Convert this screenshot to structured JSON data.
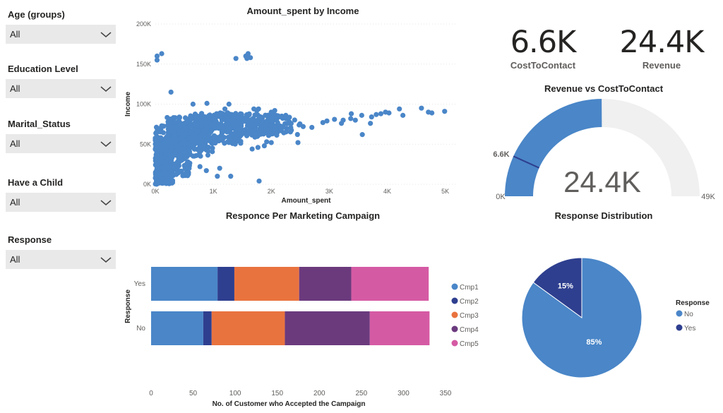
{
  "slicers": [
    {
      "title": "Age (groups)",
      "value": "All"
    },
    {
      "title": "Education Level",
      "value": "All"
    },
    {
      "title": "Marital_Status",
      "value": "All"
    },
    {
      "title": "Have a Child",
      "value": "All"
    },
    {
      "title": "Response",
      "value": "All"
    }
  ],
  "kpis": {
    "cost": {
      "value": "6.6K",
      "label": "CostToContact"
    },
    "revenue": {
      "value": "24.4K",
      "label": "Revenue"
    }
  },
  "colors": {
    "primary": "#4a86c8",
    "navy": "#2e3f8f",
    "orange": "#e9733f",
    "purple": "#6b3a7d",
    "pink": "#d55aa4",
    "gauge_bg": "#f0f0f0"
  },
  "gauge": {
    "title": "Revenue vs CostToContact",
    "value": 24.4,
    "target": 6.6,
    "min": 0,
    "max": 49,
    "value_label": "24.4K",
    "target_label": "6.6K",
    "min_label": "0K",
    "max_label": "49K"
  },
  "chart_data": [
    {
      "type": "scatter",
      "title": "Amount_spent by Income",
      "xlabel": "Amount_spent",
      "ylabel": "Income",
      "xlim": [
        0,
        5200
      ],
      "ylim": [
        0,
        200000
      ],
      "x_ticks": [
        "0K",
        "1K",
        "2K",
        "3K",
        "4K",
        "5K"
      ],
      "y_ticks": [
        "0K",
        "50K",
        "100K",
        "150K",
        "200K"
      ],
      "points": [
        {
          "x": 30,
          "y": 160000
        },
        {
          "x": 110,
          "y": 163000
        },
        {
          "x": 30,
          "y": 155000
        },
        {
          "x": 1600,
          "y": 163000
        },
        {
          "x": 1640,
          "y": 158000
        },
        {
          "x": 1590,
          "y": 160000
        },
        {
          "x": 1580,
          "y": 157000
        },
        {
          "x": 1560,
          "y": 160000
        },
        {
          "x": 1390,
          "y": 157000
        },
        {
          "x": 270,
          "y": 115000
        },
        {
          "x": 4990,
          "y": 91000
        },
        {
          "x": 4590,
          "y": 95000
        },
        {
          "x": 4710,
          "y": 90000
        },
        {
          "x": 4770,
          "y": 89000
        },
        {
          "x": 4210,
          "y": 94000
        },
        {
          "x": 3970,
          "y": 90000
        },
        {
          "x": 3890,
          "y": 88000
        },
        {
          "x": 4030,
          "y": 89000
        },
        {
          "x": 3810,
          "y": 87000
        },
        {
          "x": 3730,
          "y": 84000
        },
        {
          "x": 4270,
          "y": 86000
        },
        {
          "x": 3560,
          "y": 86000
        },
        {
          "x": 3380,
          "y": 88000
        },
        {
          "x": 3370,
          "y": 82000
        },
        {
          "x": 3450,
          "y": 80000
        },
        {
          "x": 3090,
          "y": 81000
        },
        {
          "x": 3240,
          "y": 80000
        },
        {
          "x": 2960,
          "y": 79000
        },
        {
          "x": 2890,
          "y": 77000
        },
        {
          "x": 2480,
          "y": 74000
        },
        {
          "x": 2550,
          "y": 72000
        },
        {
          "x": 2700,
          "y": 71000
        },
        {
          "x": 3210,
          "y": 76000
        },
        {
          "x": 1880,
          "y": 48000
        },
        {
          "x": 1920,
          "y": 53000
        },
        {
          "x": 2000,
          "y": 52000
        },
        {
          "x": 2460,
          "y": 52000
        },
        {
          "x": 1770,
          "y": 46000
        },
        {
          "x": 1670,
          "y": 44000
        },
        {
          "x": 650,
          "y": 100000
        },
        {
          "x": 890,
          "y": 101000
        },
        {
          "x": 1270,
          "y": 100000
        },
        {
          "x": 1200,
          "y": 94000
        },
        {
          "x": 1780,
          "y": 94000
        },
        {
          "x": 1700,
          "y": 94000
        },
        {
          "x": 1750,
          "y": 92000
        },
        {
          "x": 2060,
          "y": 92000
        },
        {
          "x": 2000,
          "y": 90000
        },
        {
          "x": 1960,
          "y": 83000
        },
        {
          "x": 2050,
          "y": 87000
        },
        {
          "x": 2180,
          "y": 85000
        },
        {
          "x": 2310,
          "y": 78000
        },
        {
          "x": 2250,
          "y": 86000
        },
        {
          "x": 1790,
          "y": 4000
        },
        {
          "x": 1300,
          "y": 10000
        },
        {
          "x": 1070,
          "y": 10000
        },
        {
          "x": 880,
          "y": 17000
        },
        {
          "x": 770,
          "y": 22000
        },
        {
          "x": 1110,
          "y": 20000
        },
        {
          "x": 550,
          "y": 12000
        },
        {
          "x": 350,
          "y": 20000
        },
        {
          "x": 560,
          "y": 28000
        },
        {
          "x": 3570,
          "y": 62000
        },
        {
          "x": 3710,
          "y": 76000
        }
      ],
      "cloud": [
        {
          "x": [
            0,
            300
          ],
          "y": [
            0,
            60000
          ],
          "n": 300
        },
        {
          "x": [
            0,
            600
          ],
          "y": [
            10000,
            75000
          ],
          "n": 260
        },
        {
          "x": [
            200,
            1000
          ],
          "y": [
            35000,
            85000
          ],
          "n": 260
        },
        {
          "x": [
            600,
            1500
          ],
          "y": [
            50000,
            90000
          ],
          "n": 220
        },
        {
          "x": [
            1200,
            2100
          ],
          "y": [
            58000,
            88000
          ],
          "n": 170
        },
        {
          "x": [
            1800,
            2500
          ],
          "y": [
            62000,
            86000
          ],
          "n": 60
        }
      ]
    },
    {
      "type": "bar",
      "orientation": "horizontal",
      "stacked": true,
      "title": "Responce Per Marketing Campaign",
      "xlabel": "No. of Customer who Accepted the Campaign",
      "ylabel": "Response",
      "categories": [
        "Yes",
        "No"
      ],
      "xlim": [
        0,
        350
      ],
      "x_ticks": [
        "0",
        "50",
        "100",
        "150",
        "200",
        "250",
        "300",
        "350"
      ],
      "series": [
        {
          "name": "Cmp1",
          "values": [
            79,
            62
          ]
        },
        {
          "name": "Cmp2",
          "values": [
            20,
            10
          ]
        },
        {
          "name": "Cmp3",
          "values": [
            77,
            87
          ]
        },
        {
          "name": "Cmp4",
          "values": [
            62,
            101
          ]
        },
        {
          "name": "Cmp5",
          "values": [
            92,
            71
          ]
        }
      ]
    },
    {
      "type": "pie",
      "title": "Response Distribution",
      "legend_title": "Response",
      "categories": [
        "No",
        "Yes"
      ],
      "values": [
        85,
        15
      ],
      "labels": [
        "85%",
        "15%"
      ]
    }
  ]
}
